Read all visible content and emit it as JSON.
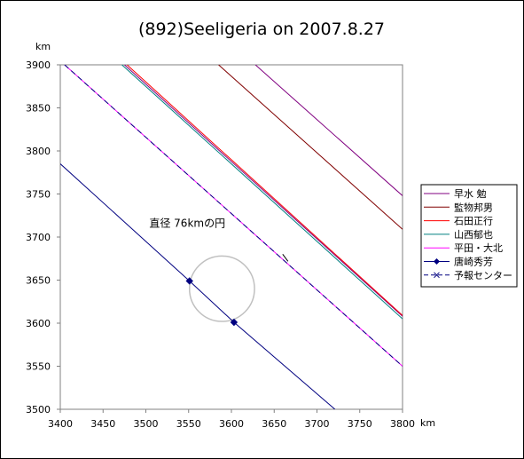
{
  "chart_data": {
    "type": "line",
    "title": "(892)Seeligeria on 2007.8.27",
    "xlabel": "km",
    "ylabel": "km",
    "xlim": [
      3400,
      3800
    ],
    "ylim": [
      3500,
      3900
    ],
    "x_ticks": [
      3400,
      3450,
      3500,
      3550,
      3600,
      3650,
      3700,
      3750,
      3800
    ],
    "y_ticks": [
      3500,
      3550,
      3600,
      3650,
      3700,
      3750,
      3800,
      3850,
      3900
    ],
    "grid": false,
    "legend_position": "right",
    "annotation": {
      "text": "直径 76kmの円",
      "x": 3504,
      "y": 3712
    },
    "circle": {
      "cx": 3589,
      "cy": 3640,
      "diameter": 76,
      "color": "#c0c0c0"
    },
    "series": [
      {
        "name": "早水 勉",
        "color": "#800080",
        "marker": "none",
        "x": [
          3628,
          3800
        ],
        "y": [
          3900,
          3748
        ]
      },
      {
        "name": "早水 勉",
        "color": "#800080",
        "marker": "none",
        "x": [
          3475,
          3800
        ],
        "y": [
          3900,
          3608
        ]
      },
      {
        "name": "監物邦男",
        "color": "#800000",
        "marker": "none",
        "x": [
          3585,
          3800
        ],
        "y": [
          3900,
          3709
        ]
      },
      {
        "name": "石田正行",
        "color": "#ff0000",
        "marker": "none",
        "x": [
          3478,
          3800
        ],
        "y": [
          3900,
          3609
        ]
      },
      {
        "name": "山西郁也",
        "color": "#008080",
        "marker": "none",
        "x": [
          3472,
          3800
        ],
        "y": [
          3900,
          3605
        ]
      },
      {
        "name": "平田・大北",
        "color": "#ff00ff",
        "marker": "none",
        "x": [
          3405,
          3800
        ],
        "y": [
          3900,
          3550
        ]
      },
      {
        "name": "唐崎秀芳",
        "color": "#000080",
        "marker": "diamond",
        "x": [
          3400,
          3551,
          3603,
          3721
        ],
        "y": [
          3785,
          3649,
          3601,
          3500
        ]
      },
      {
        "name": "予報センター",
        "color": "#000080",
        "marker": "x",
        "dashed": true,
        "x": [
          3405,
          3800
        ],
        "y": [
          3900,
          3550
        ]
      }
    ],
    "marker_points": [
      {
        "series": "唐崎秀芳",
        "x": 3551,
        "y": 3649
      },
      {
        "series": "唐崎秀芳",
        "x": 3603,
        "y": 3601
      }
    ],
    "center_mark": {
      "series": "予報センター",
      "x": 3663,
      "y": 3676
    }
  },
  "legend": [
    {
      "label": "早水 勉",
      "color": "#800080",
      "marker": "none",
      "dashed": false
    },
    {
      "label": "監物邦男",
      "color": "#800000",
      "marker": "none",
      "dashed": false
    },
    {
      "label": "石田正行",
      "color": "#ff0000",
      "marker": "none",
      "dashed": false
    },
    {
      "label": "山西郁也",
      "color": "#008080",
      "marker": "none",
      "dashed": false
    },
    {
      "label": "平田・大北",
      "color": "#ff00ff",
      "marker": "none",
      "dashed": false
    },
    {
      "label": "唐崎秀芳",
      "color": "#000080",
      "marker": "diamond",
      "dashed": false
    },
    {
      "label": "予報センター",
      "color": "#000080",
      "marker": "x",
      "dashed": true
    }
  ]
}
